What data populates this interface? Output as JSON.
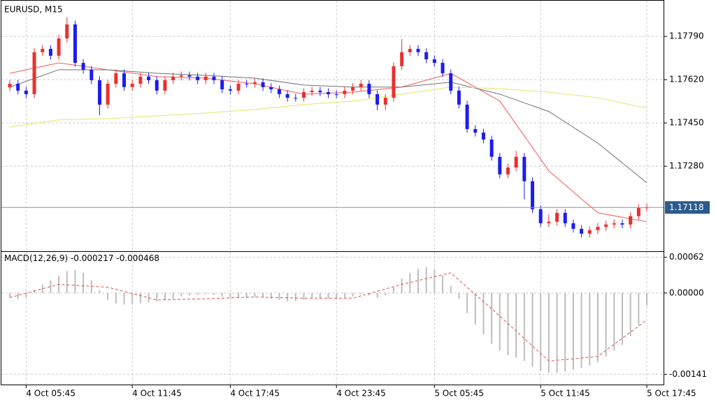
{
  "chart_data": [
    {
      "type": "candlestick",
      "title": "EURUSD, M15",
      "categories": [
        null,
        null,
        "4 Oct 05:45",
        null,
        null,
        null,
        null,
        null,
        null,
        null,
        null,
        null,
        null,
        null,
        null,
        "4 Oct 11:45",
        null,
        null,
        null,
        null,
        null,
        null,
        null,
        null,
        null,
        null,
        null,
        "4 Oct 17:45",
        null,
        null,
        null,
        null,
        null,
        null,
        null,
        null,
        null,
        null,
        null,
        null,
        "4 Oct 23:45",
        null,
        null,
        null,
        null,
        null,
        null,
        null,
        null,
        null,
        null,
        null,
        "5 Oct 05:45",
        null,
        null,
        null,
        null,
        null,
        null,
        null,
        null,
        null,
        null,
        null,
        null,
        "5 Oct 11:45",
        null,
        null,
        null,
        null,
        null,
        null,
        null,
        null,
        null,
        null,
        null,
        null,
        "5 Oct 17:45"
      ],
      "ohlc": [
        [
          1.1759,
          1.17619,
          1.17575,
          1.17604
        ],
        [
          1.17604,
          1.17619,
          1.17562,
          1.17577
        ],
        [
          1.17577,
          1.17592,
          1.17548,
          1.17563
        ],
        [
          1.17563,
          1.17743,
          1.17548,
          1.17728
        ],
        [
          1.17728,
          1.17756,
          1.17713,
          1.17741
        ],
        [
          1.17741,
          1.17756,
          1.17699,
          1.17714
        ],
        [
          1.17714,
          1.17797,
          1.17699,
          1.17782
        ],
        [
          1.17782,
          1.17865,
          1.17767,
          1.17837
        ],
        [
          1.17837,
          1.17852,
          1.17671,
          1.17686
        ],
        [
          1.17686,
          1.17701,
          1.17644,
          1.17659
        ],
        [
          1.17659,
          1.17674,
          1.17603,
          1.17618
        ],
        [
          1.17618,
          1.17633,
          1.1748,
          1.17522
        ],
        [
          1.17522,
          1.17619,
          1.17507,
          1.17604
        ],
        [
          1.17604,
          1.1766,
          1.17589,
          1.17645
        ],
        [
          1.17645,
          1.1766,
          1.17576,
          1.17591
        ],
        [
          1.17591,
          1.17619,
          1.17576,
          1.17604
        ],
        [
          1.17604,
          1.17647,
          1.17589,
          1.17632
        ],
        [
          1.17632,
          1.17647,
          1.17603,
          1.17618
        ],
        [
          1.17618,
          1.17633,
          1.17562,
          1.17577
        ],
        [
          1.17577,
          1.17633,
          1.17562,
          1.17618
        ],
        [
          1.17618,
          1.17647,
          1.17603,
          1.17632
        ],
        [
          1.17632,
          1.17652,
          1.17617,
          1.17637
        ],
        [
          1.17637,
          1.17652,
          1.17617,
          1.17632
        ],
        [
          1.17632,
          1.17647,
          1.17603,
          1.17618
        ],
        [
          1.17618,
          1.17647,
          1.17603,
          1.17632
        ],
        [
          1.17632,
          1.17647,
          1.17603,
          1.17618
        ],
        [
          1.17618,
          1.17633,
          1.17567,
          1.17582
        ],
        [
          1.17582,
          1.17597,
          1.17562,
          1.17577
        ],
        [
          1.17577,
          1.17619,
          1.17562,
          1.17604
        ],
        [
          1.17604,
          1.17619,
          1.17589,
          1.17604
        ],
        [
          1.17604,
          1.17625,
          1.17589,
          1.1761
        ],
        [
          1.1761,
          1.17625,
          1.17576,
          1.17591
        ],
        [
          1.17591,
          1.17606,
          1.17567,
          1.17582
        ],
        [
          1.17582,
          1.17597,
          1.17548,
          1.17563
        ],
        [
          1.17563,
          1.17578,
          1.17534,
          1.17549
        ],
        [
          1.17549,
          1.17564,
          1.17534,
          1.17549
        ],
        [
          1.17549,
          1.17586,
          1.17534,
          1.17571
        ],
        [
          1.17571,
          1.17592,
          1.17556,
          1.17577
        ],
        [
          1.17577,
          1.17592,
          1.17556,
          1.17571
        ],
        [
          1.17571,
          1.17586,
          1.17548,
          1.17563
        ],
        [
          1.17563,
          1.17578,
          1.17548,
          1.17563
        ],
        [
          1.17563,
          1.17592,
          1.17548,
          1.17577
        ],
        [
          1.17577,
          1.17606,
          1.17562,
          1.17591
        ],
        [
          1.17591,
          1.17619,
          1.17576,
          1.17604
        ],
        [
          1.17604,
          1.17619,
          1.17548,
          1.17563
        ],
        [
          1.17563,
          1.17578,
          1.175,
          1.17522
        ],
        [
          1.17522,
          1.17564,
          1.175,
          1.17549
        ],
        [
          1.17549,
          1.17688,
          1.17534,
          1.17673
        ],
        [
          1.17673,
          1.1778,
          1.17658,
          1.17728
        ],
        [
          1.17728,
          1.17756,
          1.17713,
          1.17741
        ],
        [
          1.17741,
          1.17756,
          1.17713,
          1.17728
        ],
        [
          1.17728,
          1.17743,
          1.17685,
          1.177
        ],
        [
          1.177,
          1.17715,
          1.17671,
          1.17686
        ],
        [
          1.17686,
          1.17701,
          1.1763,
          1.17645
        ],
        [
          1.17645,
          1.1766,
          1.17562,
          1.17577
        ],
        [
          1.17577,
          1.17592,
          1.17507,
          1.17522
        ],
        [
          1.17522,
          1.17537,
          1.17411,
          1.17426
        ],
        [
          1.17426,
          1.17441,
          1.17397,
          1.17412
        ],
        [
          1.17412,
          1.17427,
          1.1737,
          1.17385
        ],
        [
          1.17385,
          1.174,
          1.17302,
          1.17317
        ],
        [
          1.17317,
          1.17332,
          1.17233,
          1.17248
        ],
        [
          1.17248,
          1.1729,
          1.17233,
          1.17275
        ],
        [
          1.17275,
          1.1734,
          1.1726,
          1.17317
        ],
        [
          1.17317,
          1.17332,
          1.1715,
          1.17221
        ],
        [
          1.17221,
          1.17236,
          1.17096,
          1.17111
        ],
        [
          1.17111,
          1.17126,
          1.17041,
          1.17056
        ],
        [
          1.17056,
          1.1709,
          1.17041,
          1.17062
        ],
        [
          1.17062,
          1.17112,
          1.17047,
          1.17097
        ],
        [
          1.17097,
          1.17112,
          1.17041,
          1.17056
        ],
        [
          1.17056,
          1.17071,
          1.17019,
          1.17034
        ],
        [
          1.17034,
          1.17049,
          1.17,
          1.17015
        ],
        [
          1.17015,
          1.17044,
          1.17,
          1.17029
        ],
        [
          1.17029,
          1.17057,
          1.17014,
          1.17042
        ],
        [
          1.17042,
          1.17066,
          1.17027,
          1.17051
        ],
        [
          1.17051,
          1.17071,
          1.17036,
          1.17056
        ],
        [
          1.17056,
          1.17071,
          1.17036,
          1.17051
        ],
        [
          1.17051,
          1.17099,
          1.17036,
          1.17084
        ],
        [
          1.17084,
          1.17131,
          1.17069,
          1.17116
        ],
        [
          1.17116,
          1.17133,
          1.17103,
          1.17118
        ]
      ],
      "up_color": "#e8312f",
      "down_color": "#1c1cf0",
      "series": [
        {
          "color": "#f05a5a",
          "x": [
            0,
            6,
            12,
            18,
            24,
            30,
            36,
            42,
            48,
            54,
            60,
            66,
            72,
            78
          ],
          "values": [
            1.17645,
            1.17686,
            1.17659,
            1.17632,
            1.17626,
            1.17604,
            1.17563,
            1.17571,
            1.17591,
            1.17645,
            1.17536,
            1.17262,
            1.17097,
            1.17062
          ]
        },
        {
          "color": "#707070",
          "x": [
            0,
            6,
            12,
            18,
            24,
            30,
            36,
            42,
            48,
            54,
            60,
            66,
            72,
            78
          ],
          "values": [
            1.17591,
            1.17659,
            1.17659,
            1.17645,
            1.17637,
            1.17626,
            1.17599,
            1.17591,
            1.17591,
            1.1761,
            1.17563,
            1.17495,
            1.17371,
            1.17215
          ]
        },
        {
          "color": "#e4e46a",
          "x": [
            0,
            6,
            12,
            18,
            24,
            30,
            36,
            42,
            48,
            54,
            60,
            66,
            72,
            78
          ],
          "values": [
            1.17434,
            1.17462,
            1.17467,
            1.17478,
            1.17489,
            1.17503,
            1.17522,
            1.17536,
            1.17563,
            1.17591,
            1.17585,
            1.17571,
            1.17549,
            1.17508
          ]
        }
      ],
      "ylim": [
        1.16946,
        1.17933
      ],
      "yticks": [
        {
          "value": 1.1779,
          "label": "1.17790"
        },
        {
          "value": 1.1762,
          "label": "1.17620"
        },
        {
          "value": 1.1745,
          "label": "1.17450"
        },
        {
          "value": 1.1728,
          "label": "1.17280"
        }
      ],
      "grid": true
    },
    {
      "type": "macd",
      "title": "MACD(12,26,9)",
      "values": [
        -8e-05,
        -0.0001,
        -8e-05,
        5e-05,
        0.00015,
        0.00022,
        0.0003,
        0.00038,
        0.0004,
        0.00035,
        0.00022,
        5e-05,
        -0.00012,
        -0.00018,
        -0.0002,
        -0.0002,
        -0.00018,
        -0.00016,
        -0.00015,
        -0.00012,
        -0.0001,
        -6e-05,
        -4e-05,
        -3e-05,
        -2e-05,
        -3e-05,
        -6e-05,
        -8e-05,
        -8e-05,
        -8e-05,
        -7e-05,
        -8e-05,
        -0.0001,
        -0.00012,
        -0.00014,
        -0.00014,
        -0.00012,
        -0.0001,
        -0.0001,
        -0.0001,
        -0.0001,
        -8e-05,
        -6e-05,
        -2e-05,
        -4e-05,
        -8e-05,
        -4e-05,
        0.0001,
        0.00025,
        0.00035,
        0.00042,
        0.00045,
        0.0004,
        0.0003,
        0.00012,
        -0.0001,
        -0.00035,
        -0.00055,
        -0.00072,
        -0.00088,
        -0.001,
        -0.00108,
        -0.00112,
        -0.00118,
        -0.00128,
        -0.00135,
        -0.00138,
        -0.00138,
        -0.00136,
        -0.00133,
        -0.0013,
        -0.00126,
        -0.0012,
        -0.0011,
        -0.001,
        -0.0009,
        -0.00075,
        -0.00055,
        -0.000217
      ],
      "color": "#bdbdbd",
      "signal": {
        "color": "#e05050",
        "x": [
          0,
          6,
          12,
          18,
          24,
          30,
          36,
          42,
          48,
          54,
          60,
          66,
          72,
          78
        ],
        "values": [
          -8e-05,
          0.00015,
          0.0001,
          -0.00012,
          -0.0001,
          -7e-05,
          -9e-05,
          -9e-05,
          0.00015,
          0.00035,
          -0.0004,
          -0.00118,
          -0.0011,
          -0.000468
        ]
      },
      "ylim": [
        -0.0016,
        0.0007
      ],
      "yticks": [
        0.00062,
        {
          "value": 0,
          "label": "0.00000"
        },
        -0.00141
      ],
      "grid": true
    }
  ]
}
